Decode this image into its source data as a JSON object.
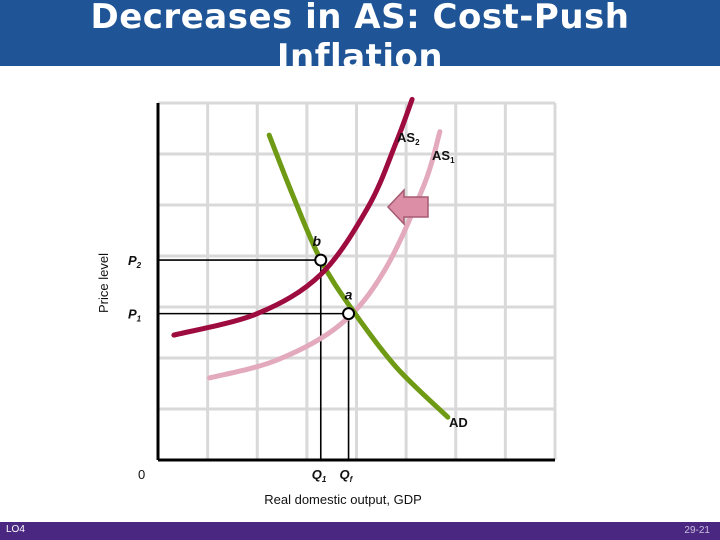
{
  "slide": {
    "title_line1": "Decreases in AS: Cost-Push",
    "title_line2": "Inflation",
    "footer_left": "LO4",
    "footer_right": "29-21"
  },
  "colors": {
    "title_bar": "#1f5596",
    "footer_bar": "#4a2781",
    "as2_curve": "#9e0b3f",
    "as1_curve": "#e3a9bd",
    "ad_curve": "#6f9a14",
    "shift_arrow": "#dc8ea6",
    "grid": "#d9d9d9"
  },
  "chart_data": {
    "type": "line",
    "xlabel": "Real domestic output, GDP",
    "ylabel": "Price level",
    "origin_label": "0",
    "xlim": [
      0,
      10
    ],
    "ylim": [
      0,
      10
    ],
    "grid": true,
    "series": [
      {
        "name": "AS1",
        "label": "AS",
        "subscript": "1",
        "points": [
          [
            1.3,
            2.3
          ],
          [
            3,
            2.8
          ],
          [
            4.6,
            3.8
          ],
          [
            5.7,
            5.3
          ],
          [
            6.7,
            7.7
          ],
          [
            7.1,
            9.2
          ]
        ]
      },
      {
        "name": "AS2",
        "label": "AS",
        "subscript": "2",
        "points": [
          [
            0.4,
            3.5
          ],
          [
            2.5,
            4.1
          ],
          [
            4.1,
            5.2
          ],
          [
            5.3,
            7.1
          ],
          [
            6,
            8.9
          ],
          [
            6.4,
            10.1
          ]
        ]
      },
      {
        "name": "AD",
        "label": "AD",
        "subscript": "",
        "points": [
          [
            2.8,
            9.1
          ],
          [
            3.4,
            7.4
          ],
          [
            4.1,
            5.6
          ],
          [
            4.9,
            4.2
          ],
          [
            6,
            2.6
          ],
          [
            7.3,
            1.2
          ]
        ]
      }
    ],
    "equilibria": [
      {
        "name": "a",
        "x": 4.8,
        "y": 4.1
      },
      {
        "name": "b",
        "x": 4.1,
        "y": 5.6
      }
    ],
    "price_labels": [
      {
        "label": "P",
        "subscript": "1",
        "y": 4.1
      },
      {
        "label": "P",
        "subscript": "2",
        "y": 5.6
      }
    ],
    "quantity_labels": [
      {
        "label": "Q",
        "subscript": "1",
        "x": 4.1
      },
      {
        "label": "Q",
        "subscript": "f",
        "x": 4.8
      }
    ],
    "shift_arrow": {
      "direction": "left",
      "from_series": "AS1",
      "to_series": "AS2"
    }
  }
}
